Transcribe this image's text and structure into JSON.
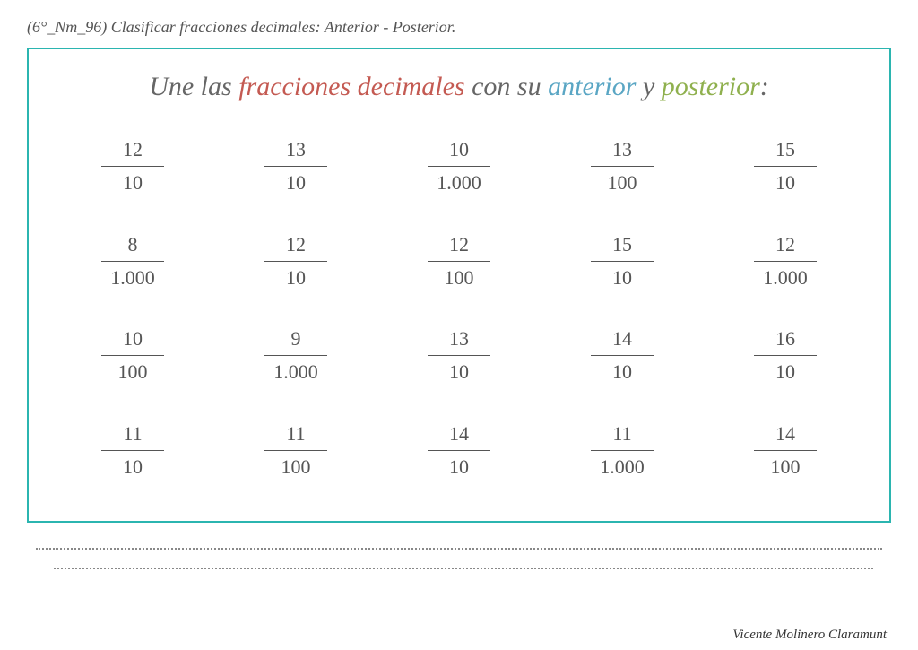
{
  "header_label": "(6°_Nm_96) Clasificar fracciones decimales: Anterior - Posterior.",
  "title": {
    "t1": "Une las ",
    "t2": "fracciones decimales",
    "t3": " con su ",
    "t4": "anterior",
    "t5": " y ",
    "t6": "posterior",
    "t7": ":"
  },
  "colors": {
    "border": "#2bb5b0",
    "red": "#c45a52",
    "blue": "#5aa6c4",
    "green": "#8fb04e",
    "text": "#555"
  },
  "fractions": [
    [
      {
        "n": "12",
        "d": "10"
      },
      {
        "n": "13",
        "d": "10"
      },
      {
        "n": "10",
        "d": "1.000"
      },
      {
        "n": "13",
        "d": "100"
      },
      {
        "n": "15",
        "d": "10"
      }
    ],
    [
      {
        "n": "8",
        "d": "1.000"
      },
      {
        "n": "12",
        "d": "10"
      },
      {
        "n": "12",
        "d": "100"
      },
      {
        "n": "15",
        "d": "10"
      },
      {
        "n": "12",
        "d": "1.000"
      }
    ],
    [
      {
        "n": "10",
        "d": "100"
      },
      {
        "n": "9",
        "d": "1.000"
      },
      {
        "n": "13",
        "d": "10"
      },
      {
        "n": "14",
        "d": "10"
      },
      {
        "n": "16",
        "d": "10"
      }
    ],
    [
      {
        "n": "11",
        "d": "10"
      },
      {
        "n": "11",
        "d": "100"
      },
      {
        "n": "14",
        "d": "10"
      },
      {
        "n": "11",
        "d": "1.000"
      },
      {
        "n": "14",
        "d": "100"
      }
    ]
  ],
  "footer_credit": "Vicente Molinero Claramunt"
}
